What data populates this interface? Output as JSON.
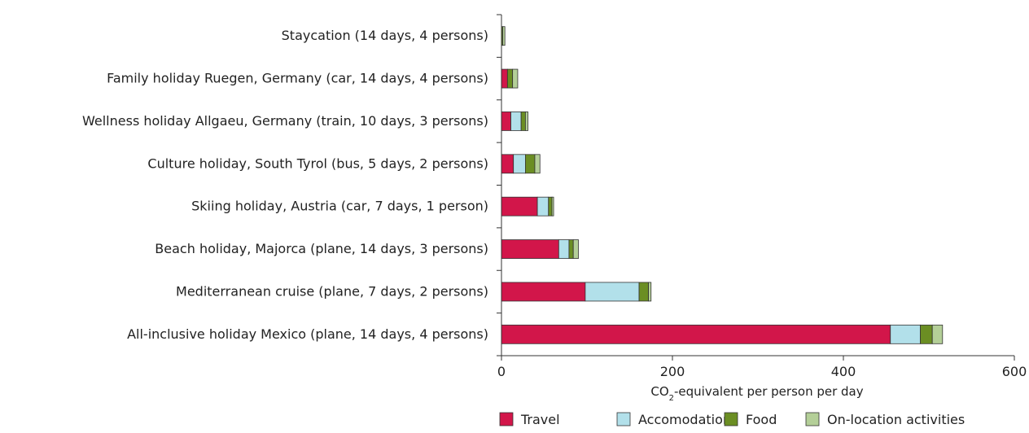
{
  "chart_data": {
    "type": "bar",
    "orientation": "horizontal",
    "stacked": true,
    "categories": [
      "Staycation (14 days, 4 persons)",
      "Family holiday Ruegen, Germany (car, 14 days, 4 persons)",
      "Wellness holiday Allgaeu, Germany (train, 10 days, 3 persons)",
      "Culture holiday, South Tyrol (bus, 5 days, 2 persons)",
      "Skiing holiday, Austria (car, 7 days, 1 person)",
      "Beach holiday, Majorca (plane, 14 days, 3 persons)",
      "Mediterranean cruise (plane, 7 days, 2 persons)",
      "All-inclusive holiday Mexico (plane, 14 days, 4 persons)"
    ],
    "series": [
      {
        "name": "Travel",
        "color": "#d2164a",
        "values": [
          0,
          7,
          11,
          14,
          42,
          67,
          98,
          455
        ]
      },
      {
        "name": "Accomodation",
        "color": "#b2e0ea",
        "values": [
          0,
          0,
          12,
          14,
          13,
          12,
          63,
          35
        ]
      },
      {
        "name": "Food",
        "color": "#6b8e23",
        "values": [
          1.5,
          6,
          5,
          11,
          4,
          5,
          11,
          14
        ]
      },
      {
        "name": "On-location activities",
        "color": "#b4cf98",
        "values": [
          2.5,
          6,
          3,
          6,
          2,
          6,
          3,
          12
        ]
      }
    ],
    "xlabel_main": "CO",
    "xlabel_sub": "2",
    "xlabel_rest": "-equivalent per person per day",
    "xlim": [
      0,
      600
    ],
    "xticks": [
      "0",
      "200",
      "400",
      "600"
    ],
    "grid": false,
    "legend_position": "bottom"
  }
}
